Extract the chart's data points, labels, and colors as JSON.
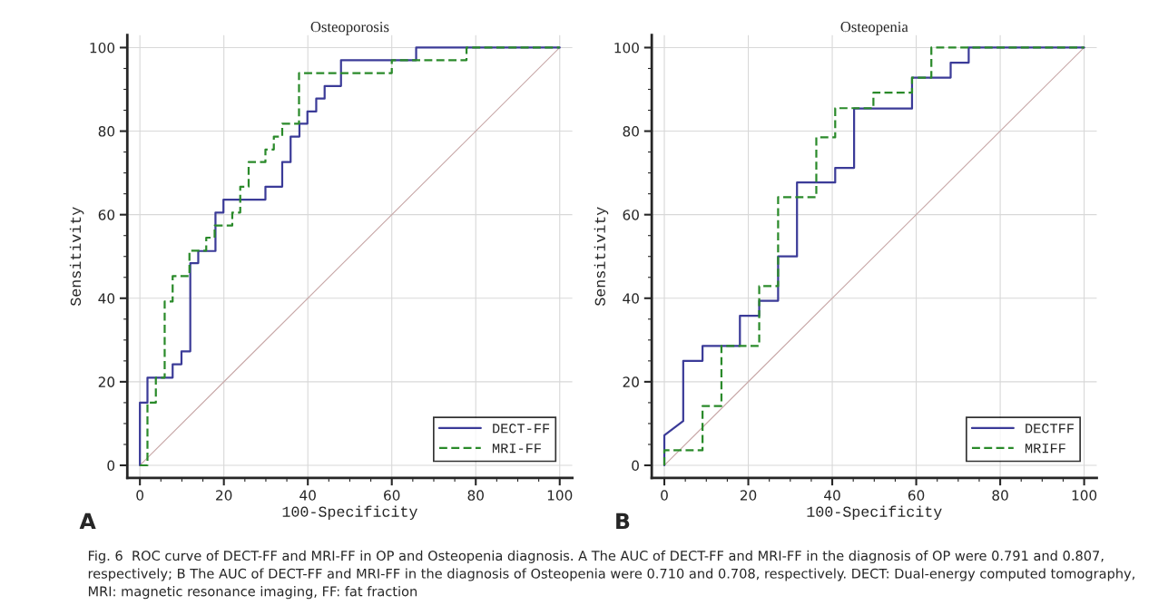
{
  "chart_data": [
    {
      "type": "line",
      "title": "Osteoporosis",
      "xlabel": "100-Specificity",
      "ylabel": "Sensitivity",
      "xlim": [
        -3,
        103
      ],
      "ylim": [
        -3,
        103
      ],
      "xticks": [
        0,
        20,
        40,
        60,
        80,
        100
      ],
      "yticks": [
        0,
        20,
        40,
        60,
        80,
        100
      ],
      "grid": true,
      "legend": "bottom right",
      "annotations": [
        "A",
        "Fig. 6  ROC curve of DECT-FF and MRI-FF in OP and Osteopenia diagnosis. A The AUC of DECT-FF and MRI-FF in the diagnosis of OP were 0.791 and 0.807, respectively; B The AUC of DECT-FF and MRI-FF in the diagnosis of Osteopenia were 0.710 and 0.708, respectively. DECT: Dual-energy computed tomography, MRI: magnetic resonance imaging, FF: fat fraction"
      ],
      "series": [
        {
          "type": "line",
          "color": "#c8a8a8",
          "line_style": "solid",
          "x": [
            0,
            100
          ],
          "values": [
            0,
            100
          ]
        },
        {
          "name": "DECT-FF",
          "color": "#3b3b98",
          "line_style": "solid",
          "x": [
            0,
            0,
            1.8,
            1.8,
            7.8,
            7.8,
            9.9,
            9.9,
            12,
            12,
            13.9,
            13.9,
            18,
            18,
            19.9,
            19.9,
            29.9,
            29.9,
            33.9,
            33.9,
            35.9,
            35.9,
            38,
            38,
            39.9,
            39.9,
            42,
            42,
            44,
            44,
            47.9,
            47.9,
            65.8,
            65.8,
            100
          ],
          "values": [
            0,
            15,
            15,
            21,
            21,
            24.2,
            24.2,
            27.3,
            27.3,
            48.4,
            48.4,
            51.3,
            51.3,
            60.5,
            60.5,
            63.6,
            63.6,
            66.7,
            66.7,
            72.6,
            72.6,
            78.7,
            78.7,
            81.8,
            81.8,
            84.7,
            84.7,
            87.8,
            87.8,
            90.8,
            90.8,
            97,
            97,
            100,
            100
          ]
        },
        {
          "name": "MRI-FF",
          "color": "#2a8a2a",
          "line_style": "dashed",
          "x": [
            0,
            1.8,
            1.8,
            3.8,
            3.8,
            5.9,
            5.9,
            7.8,
            7.8,
            11.8,
            11.8,
            15.8,
            15.8,
            17.8,
            17.8,
            22,
            22,
            23.9,
            23.9,
            25.9,
            25.9,
            29.9,
            29.9,
            31.9,
            31.9,
            33.9,
            33.9,
            37.9,
            37.9,
            60,
            60,
            77.8,
            77.8,
            100
          ],
          "values": [
            0,
            0,
            15,
            15,
            21,
            21,
            39.2,
            39.2,
            45.3,
            45.3,
            51.4,
            51.4,
            54.5,
            54.5,
            57.4,
            57.4,
            60.5,
            60.5,
            66.7,
            66.7,
            72.6,
            72.6,
            75.6,
            75.6,
            78.7,
            78.7,
            81.8,
            81.8,
            93.9,
            93.9,
            97,
            97,
            100,
            100
          ]
        }
      ]
    },
    {
      "type": "line",
      "title": "Osteopenia",
      "xlabel": "100-Specificity",
      "ylabel": "Sensitivity",
      "xlim": [
        -3,
        103
      ],
      "ylim": [
        -3,
        103
      ],
      "xticks": [
        0,
        20,
        40,
        60,
        80,
        100
      ],
      "yticks": [
        0,
        20,
        40,
        60,
        80,
        100
      ],
      "grid": true,
      "legend": "bottom right",
      "annotations": [
        "B"
      ],
      "series": [
        {
          "type": "line",
          "color": "#c8a8a8",
          "line_style": "solid",
          "x": [
            0,
            100
          ],
          "values": [
            0,
            100
          ]
        },
        {
          "name": "DECTFF",
          "color": "#3b3b98",
          "line_style": "solid",
          "x": [
            0,
            0,
            4.5,
            4.5,
            9.1,
            9.1,
            18,
            18,
            22.6,
            22.6,
            27.1,
            27.1,
            31.6,
            31.6,
            40.7,
            40.7,
            45.2,
            45.2,
            59,
            59,
            68.2,
            68.2,
            72.5,
            72.5,
            100
          ],
          "values": [
            0,
            7.2,
            10.6,
            25,
            25,
            28.6,
            28.6,
            35.8,
            35.8,
            39.4,
            39.4,
            50,
            50,
            67.7,
            67.7,
            71.2,
            71.2,
            85.4,
            85.4,
            92.8,
            92.8,
            96.4,
            96.4,
            100,
            100
          ]
        },
        {
          "name": "MRIFF",
          "color": "#2a8a2a",
          "line_style": "dashed",
          "x": [
            0,
            0,
            9.1,
            9.1,
            13.6,
            13.6,
            22.6,
            22.6,
            27.1,
            27.1,
            36.2,
            36.2,
            40.7,
            40.7,
            49.8,
            49.8,
            59,
            59,
            63.6,
            63.6,
            100
          ],
          "values": [
            0,
            3.6,
            3.6,
            14.2,
            14.2,
            28.6,
            28.6,
            42.9,
            42.9,
            64.2,
            64.2,
            78.5,
            78.5,
            85.5,
            85.5,
            89.2,
            89.2,
            92.8,
            92.8,
            100,
            100
          ]
        }
      ]
    }
  ]
}
